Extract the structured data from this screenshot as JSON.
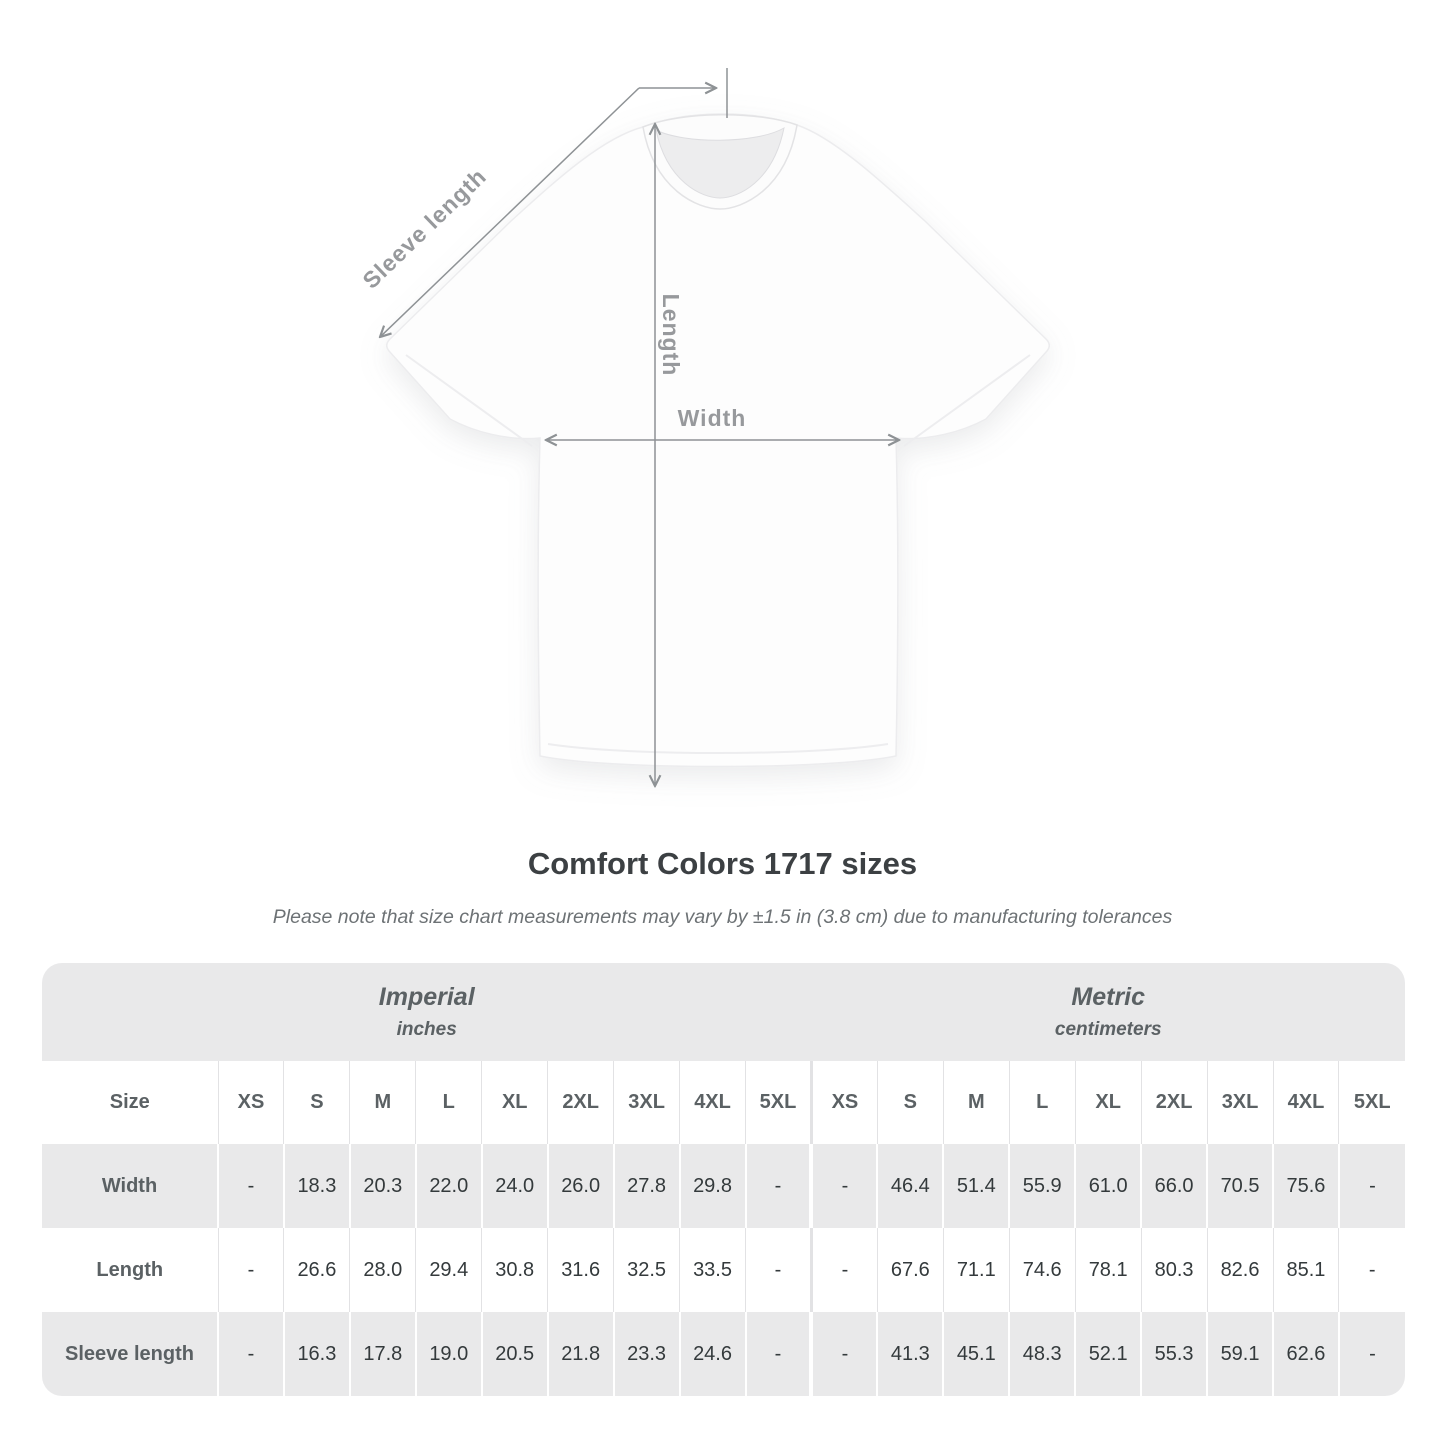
{
  "diagram": {
    "labels": {
      "sleeve_length": "Sleeve length",
      "length": "Length",
      "width": "Width"
    },
    "arrow_color": "#8e9295",
    "label_color": "#97999c"
  },
  "title": "Comfort Colors 1717 sizes",
  "note": "Please note that size chart measurements may vary by ±1.5 in (3.8 cm) due to manufacturing tolerances",
  "chart_data": {
    "type": "table",
    "title": "Comfort Colors 1717 sizes",
    "size_label": "Size",
    "sections": [
      {
        "label": "Imperial",
        "unit": "inches"
      },
      {
        "label": "Metric",
        "unit": "centimeters"
      }
    ],
    "sizes": [
      "XS",
      "S",
      "M",
      "L",
      "XL",
      "2XL",
      "3XL",
      "4XL",
      "5XL"
    ],
    "rows": [
      {
        "label": "Width",
        "imperial": [
          "-",
          "18.3",
          "20.3",
          "22.0",
          "24.0",
          "26.0",
          "27.8",
          "29.8",
          "-"
        ],
        "metric": [
          "-",
          "46.4",
          "51.4",
          "55.9",
          "61.0",
          "66.0",
          "70.5",
          "75.6",
          "-"
        ]
      },
      {
        "label": "Length",
        "imperial": [
          "-",
          "26.6",
          "28.0",
          "29.4",
          "30.8",
          "31.6",
          "32.5",
          "33.5",
          "-"
        ],
        "metric": [
          "-",
          "67.6",
          "71.1",
          "74.6",
          "78.1",
          "80.3",
          "82.6",
          "85.1",
          "-"
        ]
      },
      {
        "label": "Sleeve length",
        "imperial": [
          "-",
          "16.3",
          "17.8",
          "19.0",
          "20.5",
          "21.8",
          "23.3",
          "24.6",
          "-"
        ],
        "metric": [
          "-",
          "41.3",
          "45.1",
          "48.3",
          "52.1",
          "55.3",
          "59.1",
          "62.6",
          "-"
        ]
      }
    ],
    "colors": {
      "band_background": "#e9e9ea",
      "alt_row_background": "#e9e9ea",
      "header_text": "#5b6164",
      "value_text": "#343a3c"
    }
  }
}
